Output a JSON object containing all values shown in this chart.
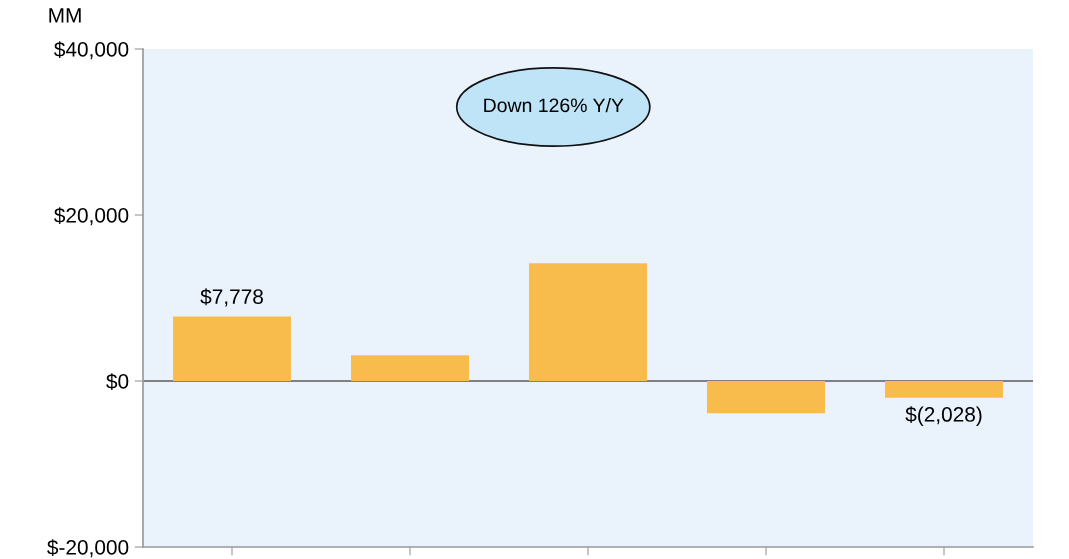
{
  "chart_data": {
    "type": "bar",
    "ylabel": "MM",
    "annotations": [
      "Down 126% Y/Y"
    ],
    "categories": [
      null,
      null,
      null,
      null,
      null
    ],
    "values": [
      7778,
      3100,
      14200,
      -3900,
      -2028
    ],
    "color": "#f8bc4c",
    "value_labels": [
      "$7,778",
      null,
      null,
      null,
      "$(2,028)"
    ],
    "ylim": [
      -20000,
      40000
    ],
    "yticks": [
      {
        "value": -20000,
        "label": "$-20,000"
      },
      {
        "value": 0,
        "label": "$0"
      },
      {
        "value": 20000,
        "label": "$20,000"
      },
      {
        "value": 40000,
        "label": "$40,000"
      }
    ],
    "ref_lines": [
      {
        "axis": "y",
        "value": 0,
        "color": "#808080"
      }
    ],
    "tick_labels": "y",
    "grid": false,
    "legend": false
  }
}
